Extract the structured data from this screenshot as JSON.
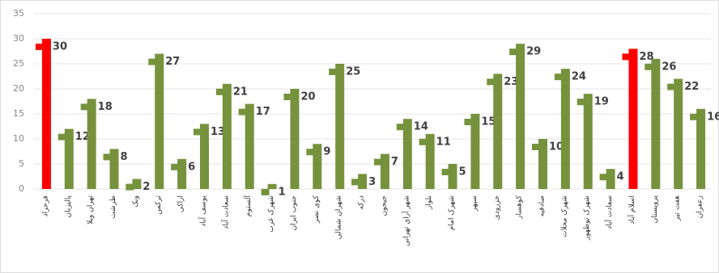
{
  "chart_data": {
    "type": "bar",
    "categories": [
      "فرحزاد",
      "پالیزبان",
      "تهران ویلا",
      "طرشت",
      "ونک",
      "ترکمن",
      "اراکی",
      "یوسف آباد",
      "سعادت آباد",
      "آلستوم",
      "شهرک غرب",
      "جنوب ایران",
      "کوی نصر",
      "شهران شمالی",
      "درکه",
      "جیحون",
      "شهر آرای تهرانی",
      "بلوار",
      "شهرک امام",
      "سپهر",
      "خزرودی",
      "کوهسار",
      "صادقیه",
      "شهرک محلات",
      "شهرک نوظهور",
      "سعادت آباد",
      "اسلام آباد",
      "پرویستان",
      "هفت تیر",
      "زعفران"
    ],
    "values": [
      30,
      12,
      18,
      8,
      2,
      27,
      6,
      13,
      21,
      17,
      1,
      20,
      9,
      25,
      3,
      7,
      14,
      11,
      5,
      15,
      23,
      29,
      10,
      24,
      19,
      4,
      28,
      26,
      22,
      16
    ],
    "colors": [
      "#ff0000",
      "#76923c",
      "#76923c",
      "#76923c",
      "#76923c",
      "#76923c",
      "#76923c",
      "#76923c",
      "#76923c",
      "#76923c",
      "#76923c",
      "#76923c",
      "#76923c",
      "#76923c",
      "#76923c",
      "#76923c",
      "#76923c",
      "#76923c",
      "#76923c",
      "#76923c",
      "#76923c",
      "#76923c",
      "#76923c",
      "#76923c",
      "#76923c",
      "#76923c",
      "#ff0000",
      "#76923c",
      "#76923c",
      "#76923c"
    ],
    "ylim": [
      0,
      35
    ],
    "yticks": [
      0,
      5,
      10,
      15,
      20,
      25,
      30,
      35
    ],
    "grid": true
  }
}
